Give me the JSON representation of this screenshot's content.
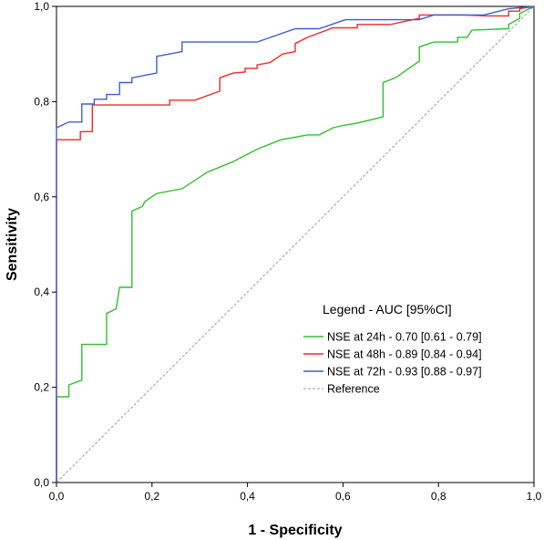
{
  "chart_data": {
    "type": "line",
    "xlabel": "1 - Specificity",
    "ylabel": "Sensitivity",
    "xlim": [
      0,
      1
    ],
    "ylim": [
      0,
      1
    ],
    "x_ticks": [
      "0,0",
      "0,2",
      "0,4",
      "0,6",
      "0,8",
      "1,0"
    ],
    "y_ticks": [
      "0,0",
      "0,2",
      "0,4",
      "0,6",
      "0,8",
      "1,0"
    ],
    "grid": false,
    "legend": {
      "title": "Legend - AUC [95%CI]",
      "placement": "bottom-right"
    },
    "series": [
      {
        "name": "NSE at 24h - 0.70 [0.61 - 0.79]",
        "color": "#2ec02e",
        "points": [
          [
            0,
            0
          ],
          [
            0,
            0.18
          ],
          [
            0.026,
            0.18
          ],
          [
            0.026,
            0.205
          ],
          [
            0.053,
            0.215
          ],
          [
            0.053,
            0.29
          ],
          [
            0.105,
            0.29
          ],
          [
            0.105,
            0.355
          ],
          [
            0.125,
            0.365
          ],
          [
            0.132,
            0.41
          ],
          [
            0.158,
            0.41
          ],
          [
            0.158,
            0.57
          ],
          [
            0.18,
            0.58
          ],
          [
            0.185,
            0.59
          ],
          [
            0.21,
            0.607
          ],
          [
            0.263,
            0.617
          ],
          [
            0.316,
            0.652
          ],
          [
            0.368,
            0.673
          ],
          [
            0.42,
            0.7
          ],
          [
            0.47,
            0.72
          ],
          [
            0.526,
            0.73
          ],
          [
            0.55,
            0.73
          ],
          [
            0.579,
            0.745
          ],
          [
            0.6,
            0.75
          ],
          [
            0.63,
            0.755
          ],
          [
            0.684,
            0.768
          ],
          [
            0.684,
            0.84
          ],
          [
            0.71,
            0.85
          ],
          [
            0.76,
            0.885
          ],
          [
            0.76,
            0.915
          ],
          [
            0.79,
            0.925
          ],
          [
            0.84,
            0.925
          ],
          [
            0.84,
            0.935
          ],
          [
            0.86,
            0.935
          ],
          [
            0.87,
            0.95
          ],
          [
            0.947,
            0.953
          ],
          [
            0.947,
            0.962
          ],
          [
            0.97,
            0.975
          ],
          [
            0.97,
            0.985
          ],
          [
            1,
            1
          ]
        ]
      },
      {
        "name": "NSE at 48h - 0.89 [0.84 - 0.94]",
        "color": "#ee2b2b",
        "points": [
          [
            0,
            0
          ],
          [
            0,
            0.72
          ],
          [
            0.05,
            0.72
          ],
          [
            0.05,
            0.737
          ],
          [
            0.075,
            0.737
          ],
          [
            0.075,
            0.793
          ],
          [
            0.237,
            0.793
          ],
          [
            0.237,
            0.803
          ],
          [
            0.29,
            0.803
          ],
          [
            0.342,
            0.822
          ],
          [
            0.342,
            0.85
          ],
          [
            0.37,
            0.86
          ],
          [
            0.395,
            0.862
          ],
          [
            0.395,
            0.87
          ],
          [
            0.42,
            0.87
          ],
          [
            0.42,
            0.877
          ],
          [
            0.447,
            0.882
          ],
          [
            0.474,
            0.9
          ],
          [
            0.5,
            0.905
          ],
          [
            0.5,
            0.922
          ],
          [
            0.526,
            0.935
          ],
          [
            0.579,
            0.955
          ],
          [
            0.63,
            0.955
          ],
          [
            0.63,
            0.962
          ],
          [
            0.7,
            0.962
          ],
          [
            0.76,
            0.975
          ],
          [
            0.76,
            0.982
          ],
          [
            0.85,
            0.982
          ],
          [
            0.9,
            0.98
          ],
          [
            0.947,
            0.98
          ],
          [
            0.947,
            0.99
          ],
          [
            0.97,
            0.99
          ],
          [
            0.97,
            0.995
          ],
          [
            1,
            1
          ]
        ]
      },
      {
        "name": "NSE at 72h - 0.93 [0.88 - 0.97]",
        "color": "#3d5fcf",
        "points": [
          [
            0,
            0
          ],
          [
            0,
            0.745
          ],
          [
            0.026,
            0.757
          ],
          [
            0.053,
            0.757
          ],
          [
            0.053,
            0.795
          ],
          [
            0.079,
            0.795
          ],
          [
            0.079,
            0.805
          ],
          [
            0.105,
            0.805
          ],
          [
            0.105,
            0.815
          ],
          [
            0.132,
            0.815
          ],
          [
            0.132,
            0.84
          ],
          [
            0.158,
            0.84
          ],
          [
            0.158,
            0.85
          ],
          [
            0.21,
            0.86
          ],
          [
            0.21,
            0.895
          ],
          [
            0.263,
            0.905
          ],
          [
            0.263,
            0.925
          ],
          [
            0.42,
            0.925
          ],
          [
            0.5,
            0.953
          ],
          [
            0.55,
            0.953
          ],
          [
            0.605,
            0.972
          ],
          [
            0.76,
            0.972
          ],
          [
            0.79,
            0.982
          ],
          [
            0.895,
            0.982
          ],
          [
            0.947,
            0.995
          ],
          [
            1,
            1
          ]
        ]
      },
      {
        "name": "Reference",
        "color": "#9a9a9a",
        "dashed": true,
        "points": [
          [
            0,
            0
          ],
          [
            1,
            1
          ]
        ]
      }
    ]
  }
}
